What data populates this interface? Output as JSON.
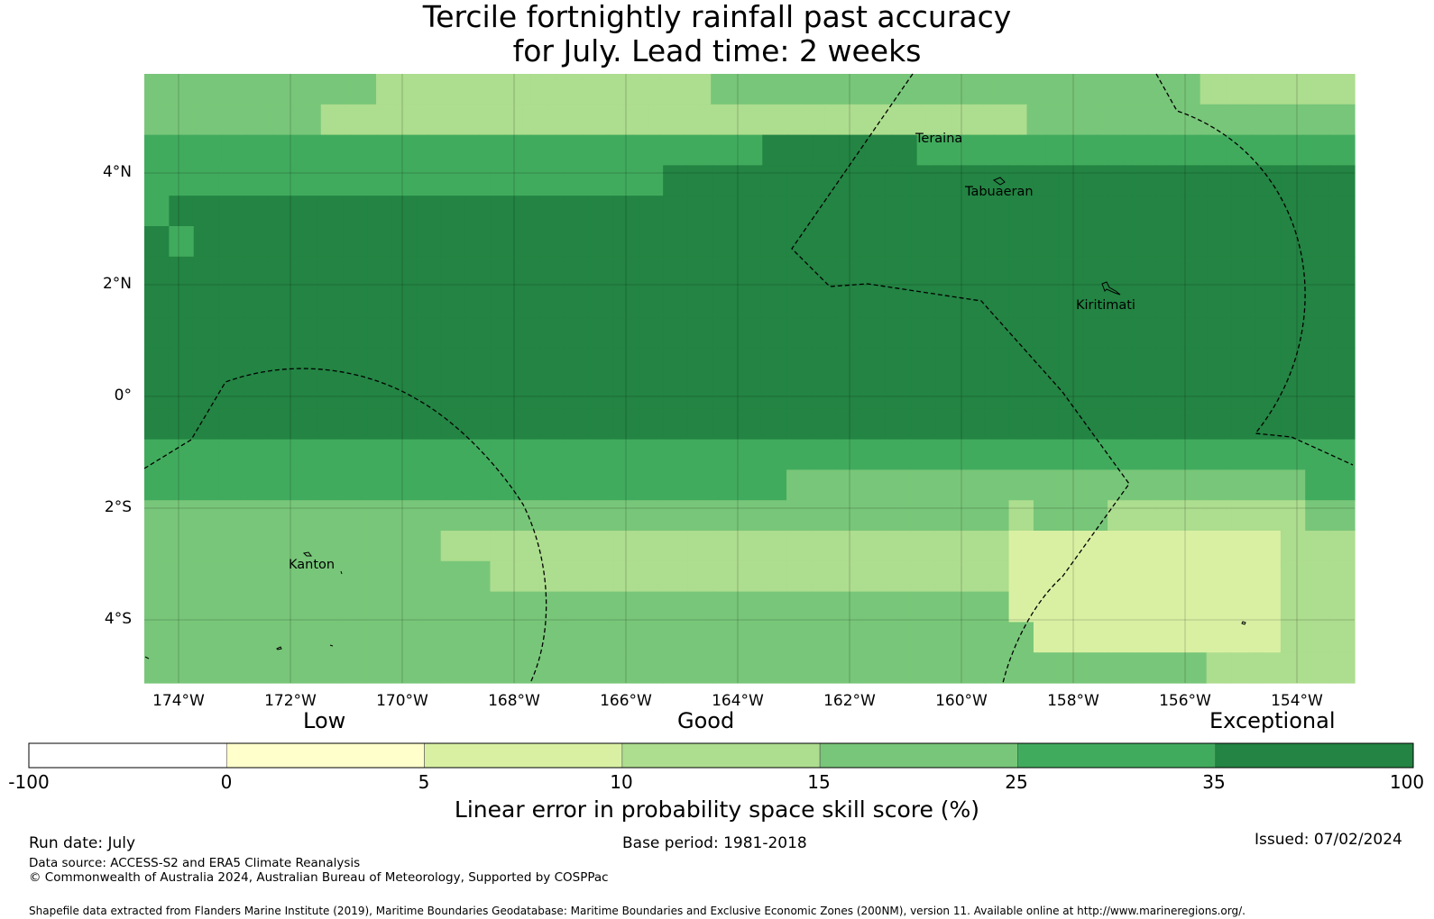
{
  "title": {
    "line1": "Tercile fortnightly rainfall past accuracy",
    "line2": "for July. Lead time: 2 weeks"
  },
  "map": {
    "lat_labels": [
      "4°N",
      "2°N",
      "0°",
      "2°S",
      "4°S"
    ],
    "lon_labels": [
      "174°W",
      "172°W",
      "170°W",
      "168°W",
      "166°W",
      "164°W",
      "162°W",
      "160°W",
      "158°W",
      "156°W",
      "154°W"
    ],
    "places": {
      "teraina": "Teraina",
      "tabuaeran": "Tabuaeran",
      "kiritimati": "Kiritimati",
      "kanton": "Kanton"
    }
  },
  "colorbar": {
    "categories": {
      "low": "Low",
      "good": "Good",
      "exceptional": "Exceptional"
    },
    "tick_labels": [
      "-100",
      "0",
      "5",
      "10",
      "15",
      "25",
      "35",
      "100"
    ],
    "colors": [
      "#ffffff",
      "#ffffcc",
      "#d9f0a3",
      "#addd8e",
      "#78c679",
      "#41ab5d",
      "#238443"
    ],
    "title": "Linear error in probability space skill score (%)"
  },
  "footer": {
    "run_date": "Run date: July",
    "base_period": "Base period: 1981-2018",
    "issued": "Issued: 07/02/2024",
    "data_source": "Data source: ACCESS-S2 and ERA5 Climate Reanalysis",
    "copyright": "© Commonwealth of Australia 2024, Australian Bureau of Meteorology, Supported by COSPPac",
    "shapefile": "Shapefile data extracted from Flanders Marine Institute (2019), Maritime Boundaries Geodatabase: Maritime Boundaries and Exclusive Economic Zones (200NM), version 11. Available online at http://www.marineregions.org/."
  },
  "skill_grid": [
    "44444444433333333333334444444444444444444333333",
    "444444433333333333333333333333333334444444444444",
    "55555555555555555555555566666655555555555555555",
    "5555555555555555555556666666666666666666666666666",
    "5666666666666666666666666666666666666666666666666",
    "6566666666666666666666666666666666666666666666666",
    "6666666666666666666666666666666666666666666666666",
    "6666666666666666666666666666666666666666666666666",
    "6666666666666666666666666666666666666666666666666",
    "6666666666666666666666666666666666666666666666666",
    "6666666666666666666666666666666666666666666666666",
    "6666666666666666666666666666666666666666666666666",
    "5555555555555555555555555555555555555555555555555",
    "5555555555555555555555555544444444444444444444455",
    "4444444444444444444444444444444444434443333333344",
    "4444444444443333333333333333333333322222222222333",
    "4444444444444433333333333333333333322222222222333",
    "4444444444444444444444444444444444422222222222333",
    "4444444444444444444444444444444444442222222222333",
    "4444444444444444444444444444444444444444444333333"
  ]
}
